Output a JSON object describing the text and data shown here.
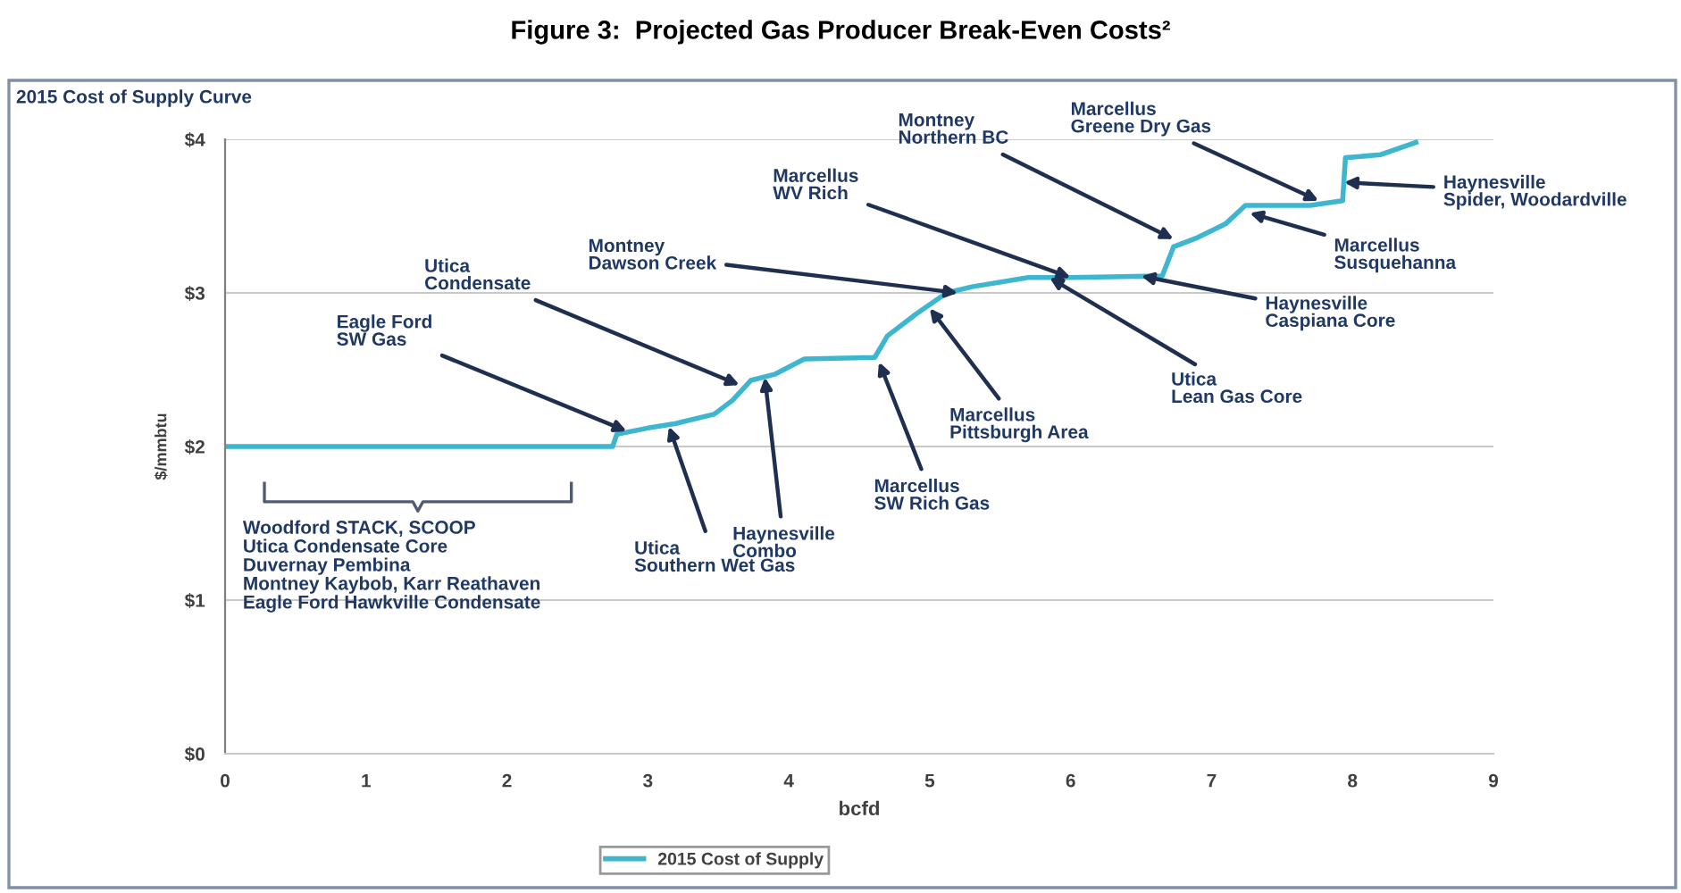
{
  "chart_data": {
    "type": "line",
    "title": "Figure 3:  Projected Gas Producer Break-Even Costs²",
    "subtitle": "2015 Cost of Supply Curve",
    "xlabel": "bcfd",
    "ylabel": "$/mmbtu",
    "x": [
      0,
      2.75,
      2.78,
      3.0,
      3.2,
      3.47,
      3.6,
      3.73,
      3.9,
      4.11,
      4.61,
      4.7,
      4.9,
      5.12,
      5.3,
      5.7,
      6.0,
      6.65,
      6.73,
      6.9,
      7.1,
      7.24,
      7.7,
      7.93,
      7.95,
      8.2,
      8.45
    ],
    "series": [
      {
        "name": "2015 Cost of Supply",
        "color": "#3fb6d0",
        "values": [
          2,
          2,
          2.08,
          2.12,
          2.15,
          2.21,
          2.3,
          2.43,
          2.47,
          2.57,
          2.58,
          2.72,
          2.86,
          3.0,
          3.04,
          3.1,
          3.1,
          3.11,
          3.3,
          3.36,
          3.45,
          3.57,
          3.57,
          3.6,
          3.88,
          3.9,
          3.98
        ]
      }
    ],
    "xlim": [
      0,
      9
    ],
    "xticks": [
      0,
      1,
      2,
      3,
      4,
      5,
      6,
      7,
      8,
      9
    ],
    "ylim": [
      0,
      4
    ],
    "yticks": [
      {
        "value": 0,
        "label": "$0"
      },
      {
        "value": 1,
        "label": "$1"
      },
      {
        "value": 2,
        "label": "$2"
      },
      {
        "value": 3,
        "label": "$3"
      },
      {
        "value": 4,
        "label": "$4"
      }
    ],
    "grid": "y",
    "legend": "bottom",
    "line_style": "solid",
    "marker": "none",
    "annotations": [
      {
        "text": "Eagle Ford\nSW Gas",
        "x": 2.85,
        "y": 2.1
      },
      {
        "text": "Utica\nCondensate",
        "x": 3.65,
        "y": 2.4
      },
      {
        "text": "Utica\nSouthern Wet Gas",
        "x": 3.15,
        "y": 2.13
      },
      {
        "text": "Haynesville\nCombo",
        "x": 3.83,
        "y": 2.45
      },
      {
        "text": "Marcellus\nSW Rich Gas",
        "x": 4.64,
        "y": 2.55
      },
      {
        "text": "Marcellus\nPittsburgh Area",
        "x": 5.0,
        "y": 2.9
      },
      {
        "text": "Montney\nDawson Creek",
        "x": 5.2,
        "y": 3.0
      },
      {
        "text": "Marcellus\nWV Rich",
        "x": 6.0,
        "y": 3.1
      },
      {
        "text": "Utica\nLean Gas Core",
        "x": 5.85,
        "y": 3.1
      },
      {
        "text": "Haynesville\nCaspiana Core",
        "x": 6.5,
        "y": 3.11
      },
      {
        "text": "Montney\nNorthern BC",
        "x": 6.73,
        "y": 3.35
      },
      {
        "text": "Marcellus\nSusquehanna",
        "x": 7.27,
        "y": 3.52
      },
      {
        "text": "Marcellus\nGreene Dry Gas",
        "x": 7.76,
        "y": 3.6
      },
      {
        "text": "Haynesville\nSpider, Woodardville",
        "x": 7.94,
        "y": 3.72
      },
      "Woodford STACK, SCOOP\nUtica Condensate Core\nDuvernay Pembina\nMontney Kaybob, Karr Reathaven\nEagle Ford Hawkville Condensate"
    ]
  }
}
